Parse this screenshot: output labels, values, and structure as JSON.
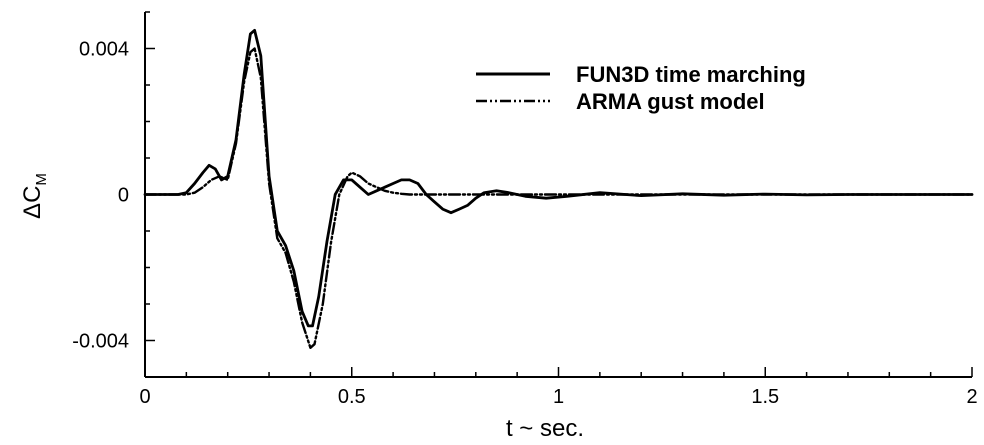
{
  "chart_data": {
    "type": "line",
    "xlabel": "t ~ sec.",
    "ylabel": "ΔC",
    "ylabel_subscript": "M",
    "xlim": [
      0,
      2
    ],
    "ylim": [
      -0.005,
      0.005
    ],
    "x_ticks": [
      0,
      0.5,
      1,
      1.5,
      2
    ],
    "x_tick_labels": [
      "0",
      "0.5",
      "1",
      "1.5",
      "2"
    ],
    "y_ticks": [
      -0.004,
      0,
      0.004
    ],
    "y_tick_labels": [
      "-0.004",
      "0",
      "0.004"
    ],
    "grid": false,
    "legend_position": "top-right",
    "series": [
      {
        "name": "FUN3D time marching",
        "style": "solid",
        "color": "#000000",
        "x": [
          0,
          0.08,
          0.1,
          0.12,
          0.14,
          0.155,
          0.17,
          0.185,
          0.2,
          0.22,
          0.24,
          0.255,
          0.265,
          0.28,
          0.3,
          0.32,
          0.34,
          0.36,
          0.38,
          0.395,
          0.405,
          0.42,
          0.44,
          0.46,
          0.48,
          0.5,
          0.52,
          0.54,
          0.56,
          0.58,
          0.6,
          0.62,
          0.64,
          0.66,
          0.68,
          0.7,
          0.72,
          0.74,
          0.76,
          0.78,
          0.8,
          0.82,
          0.85,
          0.88,
          0.92,
          0.97,
          1.02,
          1.1,
          1.2,
          1.3,
          1.4,
          1.5,
          1.6,
          1.7,
          1.8,
          1.9,
          2.0
        ],
        "y": [
          0,
          0,
          5e-05,
          0.0003,
          0.0006,
          0.0008,
          0.0007,
          0.0004,
          0.0005,
          0.0015,
          0.0033,
          0.0044,
          0.0045,
          0.0038,
          0.0005,
          -0.001,
          -0.0014,
          -0.0021,
          -0.0032,
          -0.0036,
          -0.0036,
          -0.0028,
          -0.0013,
          0.0,
          0.0004,
          0.0004,
          0.0002,
          0.0,
          0.0001,
          0.0002,
          0.0003,
          0.0004,
          0.0004,
          0.0003,
          0.0,
          -0.0002,
          -0.0004,
          -0.0005,
          -0.0004,
          -0.0003,
          -0.0001,
          5e-05,
          0.0001,
          5e-05,
          -5e-05,
          -0.0001,
          -5e-05,
          5e-05,
          -3e-05,
          2e-05,
          -2e-05,
          1e-05,
          -1e-05,
          0.0,
          0.0,
          0.0,
          0.0
        ]
      },
      {
        "name": "ARMA gust model",
        "style": "dash-dot-dot",
        "color": "#000000",
        "x": [
          0,
          0.1,
          0.12,
          0.14,
          0.16,
          0.18,
          0.2,
          0.22,
          0.24,
          0.255,
          0.265,
          0.28,
          0.3,
          0.32,
          0.34,
          0.36,
          0.38,
          0.4,
          0.41,
          0.43,
          0.45,
          0.47,
          0.49,
          0.5,
          0.52,
          0.54,
          0.56,
          0.58,
          0.6,
          0.62,
          0.64,
          0.66,
          0.7,
          0.8,
          1.0,
          1.5,
          2.0
        ],
        "y": [
          0,
          0,
          5e-05,
          0.0002,
          0.0004,
          0.0005,
          0.0004,
          0.0014,
          0.0031,
          0.0039,
          0.004,
          0.0032,
          0.0003,
          -0.0012,
          -0.0016,
          -0.0024,
          -0.0035,
          -0.0042,
          -0.0041,
          -0.003,
          -0.0013,
          0.0,
          0.0005,
          0.0006,
          0.0005,
          0.0003,
          0.0002,
          0.0001,
          5e-05,
          2e-05,
          0.0,
          0.0,
          0.0,
          0.0,
          0.0,
          0.0,
          0.0
        ]
      }
    ]
  }
}
